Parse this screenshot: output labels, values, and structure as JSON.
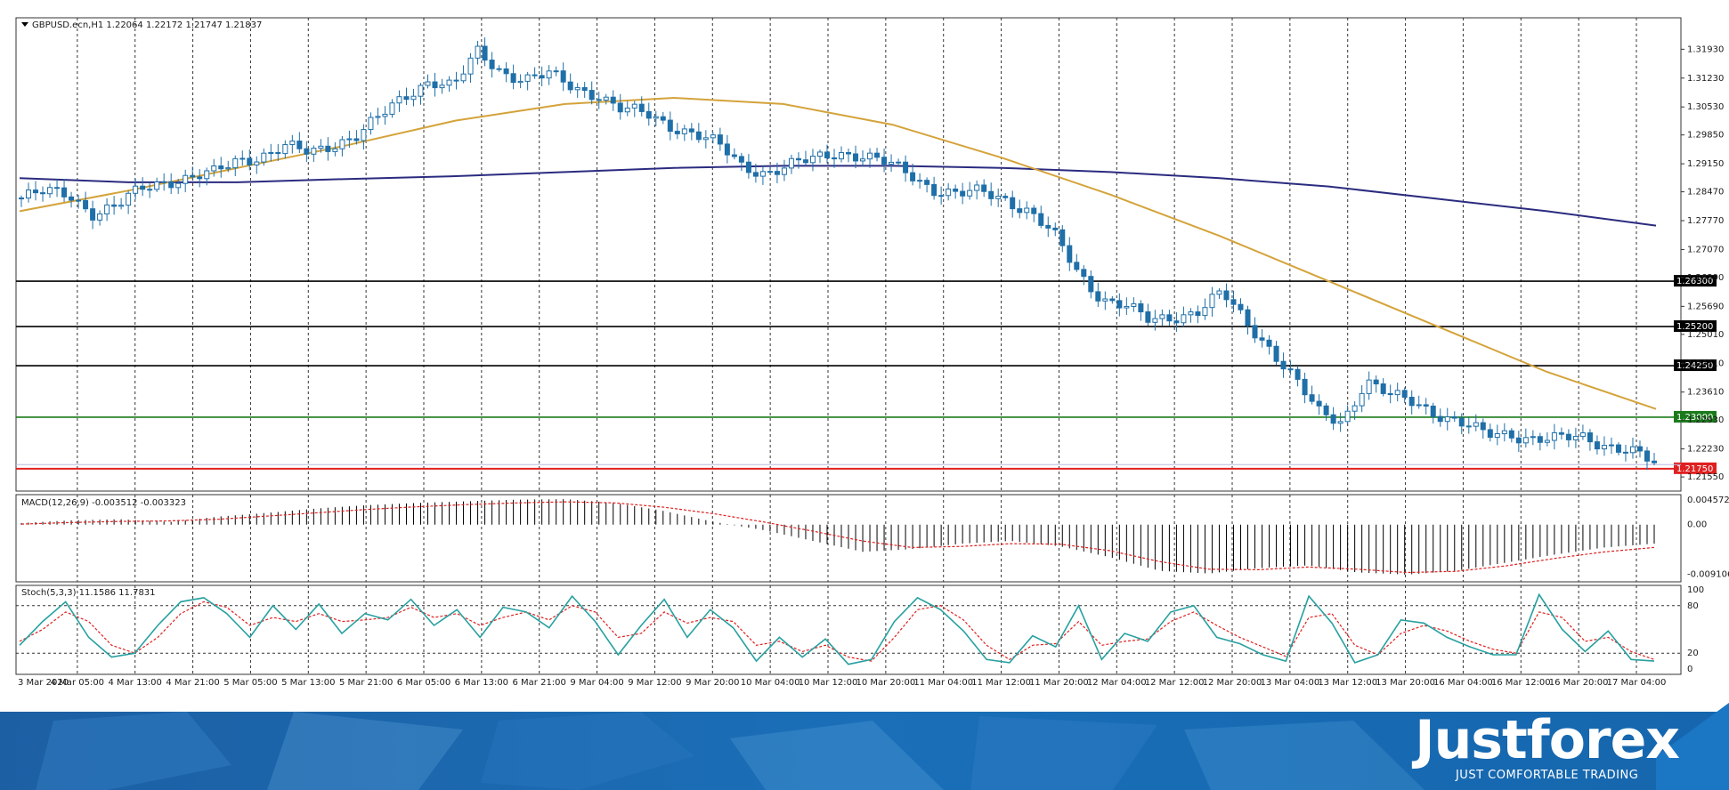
{
  "chart_data": [
    {
      "type": "candlestick",
      "title": "GBPUSD.ecn,H1  1.22064 1.22172 1.21747 1.21837",
      "y_ticks": [
        "1.31930",
        "1.31230",
        "1.30530",
        "1.29850",
        "1.29150",
        "1.28470",
        "1.27770",
        "1.27070",
        "1.26390",
        "1.25690",
        "1.25010",
        "1.24310",
        "1.23610",
        "1.22930",
        "1.22230",
        "1.21550"
      ],
      "x_ticks": [
        "3 Mar 2020",
        "4 Mar 05:00",
        "4 Mar 13:00",
        "4 Mar 21:00",
        "5 Mar 05:00",
        "5 Mar 13:00",
        "5 Mar 21:00",
        "6 Mar 05:00",
        "6 Mar 13:00",
        "6 Mar 21:00",
        "9 Mar 04:00",
        "9 Mar 12:00",
        "9 Mar 20:00",
        "10 Mar 04:00",
        "10 Mar 12:00",
        "10 Mar 20:00",
        "11 Mar 04:00",
        "11 Mar 12:00",
        "11 Mar 20:00",
        "12 Mar 04:00",
        "12 Mar 12:00",
        "12 Mar 20:00",
        "13 Mar 04:00",
        "13 Mar 12:00",
        "13 Mar 20:00",
        "16 Mar 04:00",
        "16 Mar 12:00",
        "16 Mar 20:00",
        "17 Mar 04:00"
      ],
      "ylim": [
        1.2125,
        1.3265
      ],
      "close_path": [
        1.2832,
        1.2845,
        1.2842,
        1.2795,
        1.281,
        1.2855,
        1.2875,
        1.288,
        1.289,
        1.2925,
        1.2935,
        1.2955,
        1.294,
        1.2965,
        1.2985,
        1.303,
        1.308,
        1.312,
        1.31,
        1.3185,
        1.314,
        1.312,
        1.313,
        1.31,
        1.3085,
        1.3045,
        1.3035,
        1.301,
        1.299,
        1.296,
        1.291,
        1.2895,
        1.291,
        1.2925,
        1.2945,
        1.2935,
        1.2915,
        1.289,
        1.2855,
        1.284,
        1.2845,
        1.283,
        1.28,
        1.274,
        1.265,
        1.259,
        1.257,
        1.253,
        1.2545,
        1.256,
        1.26,
        1.253,
        1.247,
        1.2395,
        1.231,
        1.229,
        1.239,
        1.235,
        1.2335,
        1.231,
        1.2285,
        1.2255,
        1.226,
        1.225,
        1.2245,
        1.225,
        1.2235,
        1.222,
        1.2184
      ],
      "ma_fast": [
        1.28,
        1.285,
        1.2905,
        1.296,
        1.302,
        1.306,
        1.3075,
        1.306,
        1.301,
        1.293,
        1.284,
        1.274,
        1.263,
        1.252,
        1.241,
        1.232
      ],
      "ma_slow": [
        1.288,
        1.287,
        1.287,
        1.2878,
        1.2885,
        1.2895,
        1.2905,
        1.291,
        1.291,
        1.2905,
        1.2895,
        1.288,
        1.286,
        1.283,
        1.28,
        1.2765
      ],
      "levels": [
        {
          "value": 1.263,
          "label": "1.26300",
          "color": "#000000"
        },
        {
          "value": 1.252,
          "label": "1.25200",
          "color": "#000000"
        },
        {
          "value": 1.2425,
          "label": "1.24250",
          "color": "#000000"
        },
        {
          "value": 1.23,
          "label": "1.23000",
          "color": "#1a7a1a"
        },
        {
          "value": 1.2175,
          "label": "1.21750",
          "color": "#e02020"
        }
      ],
      "colors": {
        "candle": "#1f6fa8",
        "ma_fast": "#d4a33a",
        "ma_slow": "#2b2b80"
      }
    },
    {
      "type": "bar",
      "title": "MACD(12,26,9) -0.003512 -0.003323",
      "y_ticks": [
        "0.004572",
        "0.00",
        "-0.009106"
      ],
      "ylim": [
        -0.0102,
        0.0052
      ],
      "hist_path": [
        0.0003,
        0.0008,
        0.001,
        0.0005,
        0.0015,
        0.0022,
        0.003,
        0.0036,
        0.004,
        0.0043,
        0.0046,
        0.0047,
        0.004,
        0.0025,
        0.0005,
        -0.001,
        -0.003,
        -0.005,
        -0.0045,
        -0.0035,
        -0.003,
        -0.004,
        -0.006,
        -0.0085,
        -0.009,
        -0.008,
        -0.0075,
        -0.0088,
        -0.0092,
        -0.0085,
        -0.007,
        -0.0055,
        -0.0042,
        -0.0035
      ],
      "signal_path": [
        0.0001,
        0.0004,
        0.0006,
        0.0007,
        0.001,
        0.0016,
        0.0022,
        0.0028,
        0.0033,
        0.0037,
        0.004,
        0.0042,
        0.004,
        0.0032,
        0.002,
        0.0005,
        -0.0012,
        -0.003,
        -0.0042,
        -0.004,
        -0.0035,
        -0.0036,
        -0.0048,
        -0.0068,
        -0.0082,
        -0.0083,
        -0.0078,
        -0.0082,
        -0.0088,
        -0.0086,
        -0.0076,
        -0.0062,
        -0.005,
        -0.0042
      ],
      "colors": {
        "hist": "#000000",
        "signal": "#e02020"
      }
    },
    {
      "type": "line",
      "title": "Stoch(5,3,3) 11.1586 11.7831",
      "y_ticks": [
        "100",
        "80",
        "20",
        "0"
      ],
      "ylim": [
        0,
        100
      ],
      "levels": [
        80,
        20
      ],
      "k_path": [
        30,
        60,
        85,
        40,
        15,
        20,
        55,
        85,
        90,
        70,
        40,
        80,
        50,
        82,
        45,
        70,
        62,
        88,
        55,
        75,
        40,
        78,
        72,
        52,
        92,
        60,
        18,
        55,
        88,
        40,
        75,
        52,
        10,
        40,
        15,
        38,
        6,
        12,
        60,
        90,
        75,
        48,
        12,
        8,
        42,
        28,
        80,
        12,
        45,
        35,
        72,
        80,
        40,
        32,
        18,
        10,
        92,
        58,
        8,
        18,
        62,
        58,
        40,
        28,
        18,
        18,
        94,
        50,
        22,
        48,
        12,
        10
      ],
      "d_path": [
        35,
        50,
        72,
        60,
        30,
        20,
        40,
        70,
        85,
        78,
        55,
        65,
        60,
        70,
        60,
        62,
        65,
        78,
        65,
        70,
        55,
        65,
        72,
        62,
        80,
        72,
        40,
        45,
        72,
        58,
        65,
        60,
        30,
        35,
        22,
        30,
        15,
        10,
        40,
        75,
        80,
        62,
        30,
        12,
        30,
        32,
        60,
        30,
        35,
        38,
        60,
        72,
        55,
        40,
        28,
        16,
        65,
        70,
        30,
        18,
        45,
        55,
        48,
        35,
        25,
        20,
        72,
        65,
        35,
        40,
        22,
        12
      ],
      "colors": {
        "k": "#27a0a0",
        "d": "#e02020"
      }
    }
  ],
  "footer": {
    "brand": "Justforex",
    "tagline": "JUST COMFORTABLE TRADING"
  }
}
